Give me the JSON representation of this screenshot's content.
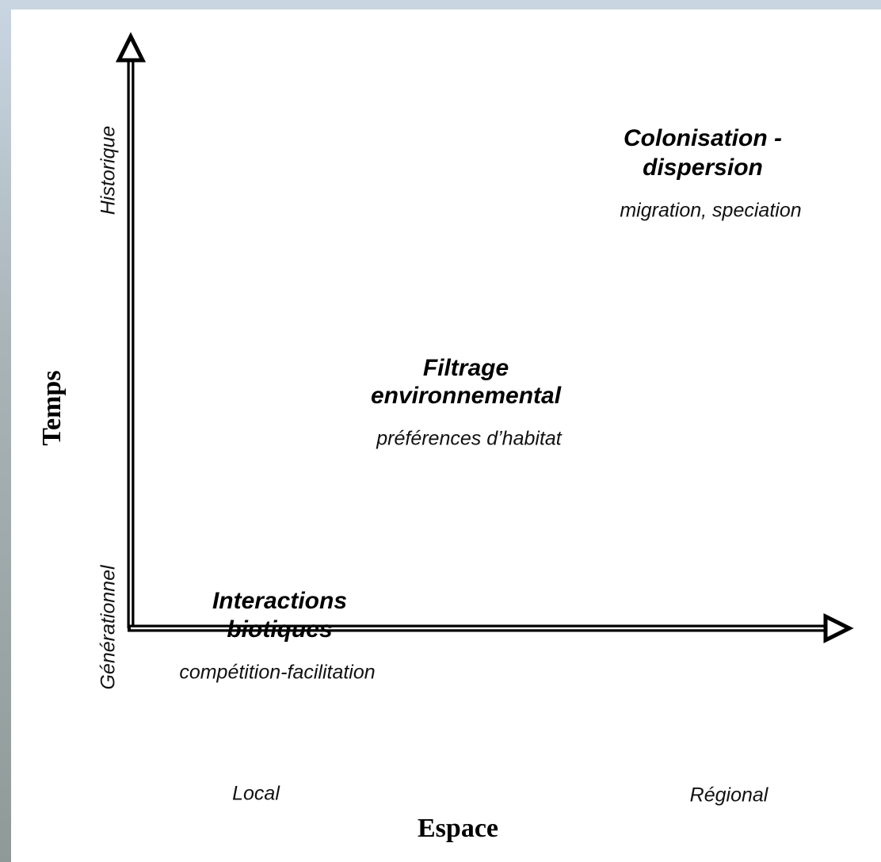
{
  "x_axis": {
    "title": "Espace",
    "low": "Local",
    "high": "Régional"
  },
  "y_axis": {
    "title": "Temps",
    "low": "Générationnel",
    "high": "Historique"
  },
  "processes": [
    {
      "title": [
        "Colonisation -",
        "dispersion"
      ],
      "subtitle": "migration, speciation"
    },
    {
      "title": [
        "Filtrage",
        "environnemental"
      ],
      "subtitle": "préférences d’habitat"
    },
    {
      "title": [
        "Interactions",
        "biotiques"
      ],
      "subtitle": "compétition-facilitation"
    }
  ]
}
